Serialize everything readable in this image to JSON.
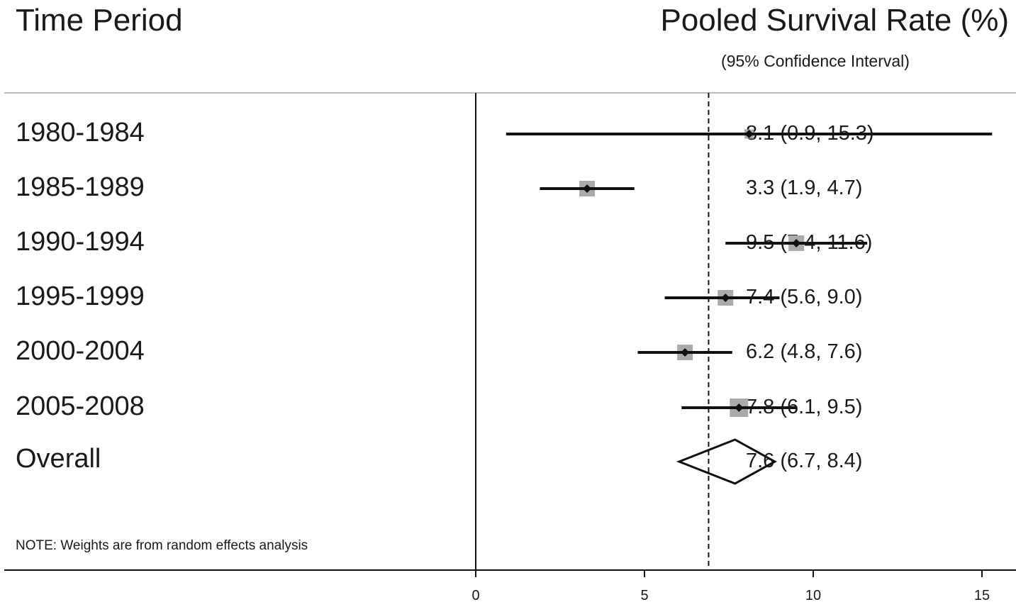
{
  "header": {
    "left_title": "Time Period",
    "right_title": "Pooled Survival Rate (%)",
    "right_subtitle": "(95% Confidence Interval)"
  },
  "note": "NOTE: Weights are from random effects analysis",
  "chart_data": {
    "type": "forest",
    "xlim": [
      0,
      17.2
    ],
    "xticks": [
      0,
      5,
      10,
      15
    ],
    "reference_line": 6.9,
    "grid": false,
    "rows": [
      {
        "label": "1980-1984",
        "estimate": 8.1,
        "lower": 0.9,
        "upper": 15.3,
        "text": "8.1 (0.9, 15.3)"
      },
      {
        "label": "1985-1989",
        "estimate": 3.3,
        "lower": 1.9,
        "upper": 4.7,
        "text": "3.3 (1.9, 4.7)"
      },
      {
        "label": "1990-1994",
        "estimate": 9.5,
        "lower": 7.4,
        "upper": 11.6,
        "text": "9.5 (7.4, 11.6)"
      },
      {
        "label": "1995-1999",
        "estimate": 7.4,
        "lower": 5.6,
        "upper": 9.0,
        "text": "7.4 (5.6, 9.0)"
      },
      {
        "label": "2000-2004",
        "estimate": 6.2,
        "lower": 4.8,
        "upper": 7.6,
        "text": "6.2 (4.8, 7.6)"
      },
      {
        "label": "2005-2008",
        "estimate": 7.8,
        "lower": 6.1,
        "upper": 9.5,
        "text": "7.8 (6.1, 9.5)"
      }
    ],
    "overall": {
      "label": "Overall",
      "estimate": 7.6,
      "lower": 6.7,
      "upper": 8.4,
      "text": "7.6 (6.7, 8.4)"
    },
    "colors": {
      "line": "#111111",
      "weight_box": "#aaaaaa",
      "rule": "#bbbbbb"
    }
  }
}
